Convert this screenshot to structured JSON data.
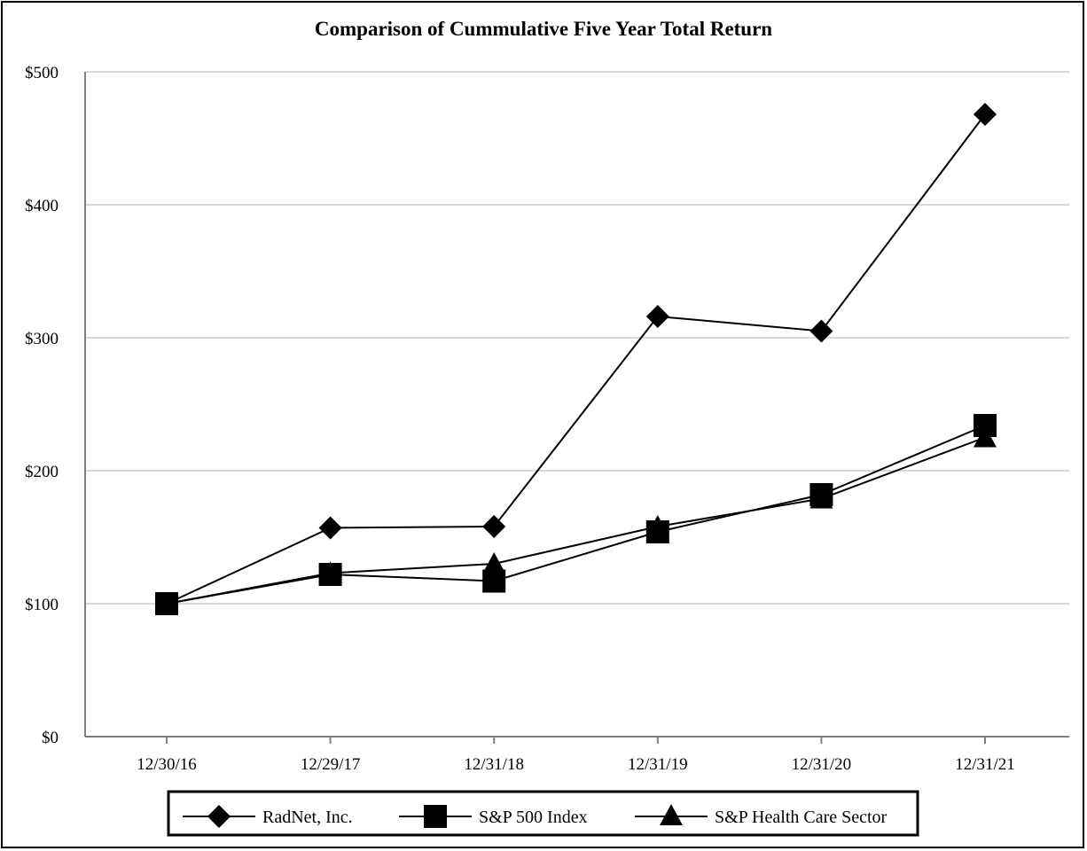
{
  "chart_data": {
    "type": "line",
    "title": "Comparison of Cummulative Five Year Total Return",
    "xlabel": "",
    "ylabel": "",
    "categories": [
      "12/30/16",
      "12/29/17",
      "12/31/18",
      "12/31/19",
      "12/31/20",
      "12/31/21"
    ],
    "ylim": [
      0,
      500
    ],
    "yticks": [
      0,
      100,
      200,
      300,
      400,
      500
    ],
    "ytick_labels": [
      "$0",
      "$100",
      "$200",
      "$300",
      "$400",
      "$500"
    ],
    "grid": true,
    "legend_position": "bottom",
    "series": [
      {
        "name": "RadNet, Inc.",
        "marker": "diamond",
        "color": "#000000",
        "values": [
          100,
          157,
          158,
          316,
          305,
          468
        ]
      },
      {
        "name": "S&P 500 Index",
        "marker": "square",
        "color": "#000000",
        "values": [
          100,
          122,
          117,
          154,
          182,
          234
        ]
      },
      {
        "name": "S&P Health Care Sector",
        "marker": "triangle",
        "color": "#000000",
        "values": [
          100,
          123,
          130,
          158,
          179,
          225
        ]
      }
    ]
  }
}
